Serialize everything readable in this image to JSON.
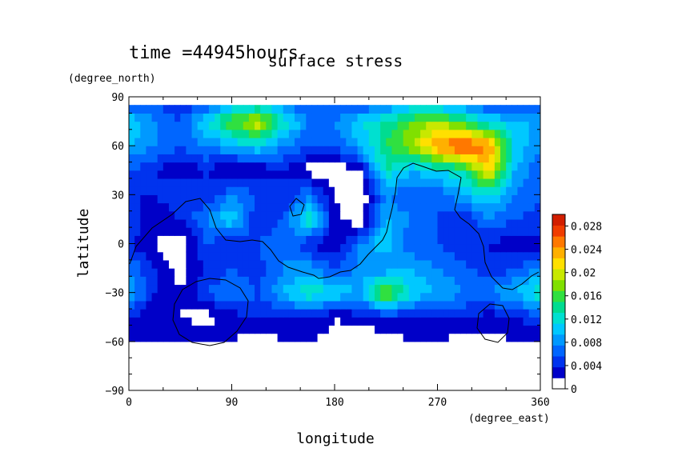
{
  "chart_data": {
    "type": "heatmap",
    "time_label": "time =44945hours",
    "title": "surface stress",
    "xlabel": "longitude",
    "ylabel": "latitude",
    "x_unit": "(degree_east)",
    "y_unit": "(degree_north)",
    "xlim": [
      0,
      360
    ],
    "ylim": [
      -90,
      90
    ],
    "x_ticks": [
      0,
      90,
      180,
      270,
      360
    ],
    "y_ticks": [
      -90,
      -60,
      -30,
      0,
      30,
      60,
      90
    ],
    "colorbar": {
      "levels": [
        0,
        0.002,
        0.004,
        0.006,
        0.008,
        0.01,
        0.012,
        0.014,
        0.016,
        0.018,
        0.02,
        0.022,
        0.024,
        0.026,
        0.028,
        0.03
      ],
      "labels": [
        "0",
        "0.004",
        "0.008",
        "0.012",
        "0.016",
        "0.02",
        "0.024",
        "0.028"
      ],
      "colors": [
        "#ffffff",
        "#0000c8",
        "#0033ee",
        "#0066ff",
        "#0099ff",
        "#00c8ff",
        "#00e0d0",
        "#00dc90",
        "#30e040",
        "#80e000",
        "#c8e800",
        "#ffe000",
        "#ffb000",
        "#ff7800",
        "#f03c00",
        "#d21e00"
      ]
    },
    "field": {
      "grid_x": [
        0,
        22.5,
        45,
        67.5,
        90,
        112.5,
        135,
        157.5,
        180,
        202.5,
        225,
        247.5,
        270,
        292.5,
        315,
        337.5,
        360
      ],
      "grid_y": [
        -60,
        -45,
        -30,
        -15,
        0,
        15,
        30,
        45,
        60,
        75,
        85
      ],
      "values": [
        [
          0.003,
          0.003,
          0.004,
          0.004,
          0.002,
          0.0,
          0.002,
          0.002,
          0.001,
          0.0,
          0.001,
          0.002,
          0.002,
          0.001,
          0.001,
          0.002,
          0.003
        ],
        [
          0.004,
          0.002,
          0.002,
          0.001,
          0.003,
          0.004,
          0.004,
          0.004,
          0.002,
          0.003,
          0.004,
          0.004,
          0.004,
          0.004,
          0.003,
          0.004,
          0.005
        ],
        [
          0.01,
          0.004,
          0.002,
          0.006,
          0.008,
          0.006,
          0.01,
          0.014,
          0.012,
          0.01,
          0.02,
          0.012,
          0.01,
          0.008,
          0.008,
          0.01,
          0.014
        ],
        [
          0.008,
          0.004,
          0.001,
          0.004,
          0.006,
          0.005,
          0.008,
          0.009,
          0.006,
          0.008,
          0.008,
          0.01,
          0.008,
          0.007,
          0.004,
          0.006,
          0.008
        ],
        [
          0.004,
          0.002,
          0.0,
          0.006,
          0.004,
          0.006,
          0.008,
          0.004,
          0.002,
          0.008,
          0.012,
          0.006,
          0.006,
          0.004,
          0.004,
          0.002,
          0.003
        ],
        [
          0.006,
          0.002,
          0.004,
          0.008,
          0.012,
          0.004,
          0.006,
          0.014,
          0.003,
          0.0,
          0.01,
          0.008,
          0.006,
          0.004,
          0.008,
          0.006,
          0.005
        ],
        [
          0.004,
          0.004,
          0.006,
          0.004,
          0.008,
          0.006,
          0.004,
          0.008,
          0.002,
          0.0,
          0.008,
          0.006,
          0.006,
          0.01,
          0.012,
          0.008,
          0.006
        ],
        [
          0.006,
          0.004,
          0.002,
          0.004,
          0.001,
          0.002,
          0.004,
          0.001,
          0.0,
          0.002,
          0.014,
          0.01,
          0.012,
          0.014,
          0.024,
          0.01,
          0.006
        ],
        [
          0.01,
          0.008,
          0.006,
          0.008,
          0.01,
          0.012,
          0.008,
          0.006,
          0.006,
          0.01,
          0.016,
          0.02,
          0.026,
          0.03,
          0.026,
          0.012,
          0.008
        ],
        [
          0.012,
          0.008,
          0.006,
          0.012,
          0.018,
          0.022,
          0.014,
          0.008,
          0.008,
          0.012,
          0.014,
          0.018,
          0.02,
          0.016,
          0.012,
          0.01,
          0.01
        ],
        [
          0.006,
          0.006,
          0.004,
          0.006,
          0.01,
          0.012,
          0.008,
          0.006,
          0.006,
          0.006,
          0.008,
          0.01,
          0.01,
          0.008,
          0.006,
          0.006,
          0.006
        ]
      ]
    }
  }
}
